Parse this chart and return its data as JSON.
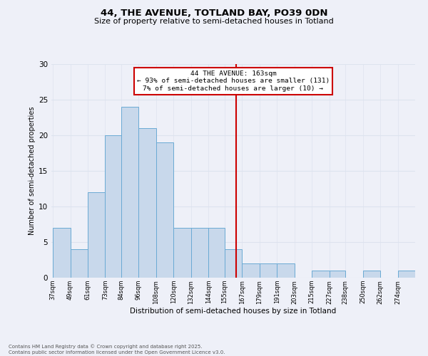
{
  "title_line1": "44, THE AVENUE, TOTLAND BAY, PO39 0DN",
  "title_line2": "Size of property relative to semi-detached houses in Totland",
  "xlabel": "Distribution of semi-detached houses by size in Totland",
  "ylabel": "Number of semi-detached properties",
  "bins_labels": [
    "37sqm",
    "49sqm",
    "61sqm",
    "73sqm",
    "84sqm",
    "96sqm",
    "108sqm",
    "120sqm",
    "132sqm",
    "144sqm",
    "155sqm",
    "167sqm",
    "179sqm",
    "191sqm",
    "203sqm",
    "215sqm",
    "227sqm",
    "238sqm",
    "250sqm",
    "262sqm",
    "274sqm"
  ],
  "bin_edges": [
    37,
    49,
    61,
    73,
    84,
    96,
    108,
    120,
    132,
    144,
    155,
    167,
    179,
    191,
    203,
    215,
    227,
    238,
    250,
    262,
    274
  ],
  "values": [
    7,
    4,
    12,
    20,
    24,
    21,
    19,
    7,
    7,
    7,
    4,
    2,
    2,
    2,
    0,
    1,
    1,
    0,
    1,
    0,
    1
  ],
  "bar_color": "#c8d8eb",
  "bar_edge_color": "#6aaad4",
  "grid_color": "#dde3ef",
  "vline_x": 163,
  "vline_color": "#cc0000",
  "annotation_text": "44 THE AVENUE: 163sqm\n← 93% of semi-detached houses are smaller (131)\n7% of semi-detached houses are larger (10) →",
  "annotation_box_edgecolor": "#cc0000",
  "footer_line1": "Contains HM Land Registry data © Crown copyright and database right 2025.",
  "footer_line2": "Contains public sector information licensed under the Open Government Licence v3.0.",
  "ylim": [
    0,
    30
  ],
  "yticks": [
    0,
    5,
    10,
    15,
    20,
    25,
    30
  ],
  "background_color": "#eef0f8"
}
